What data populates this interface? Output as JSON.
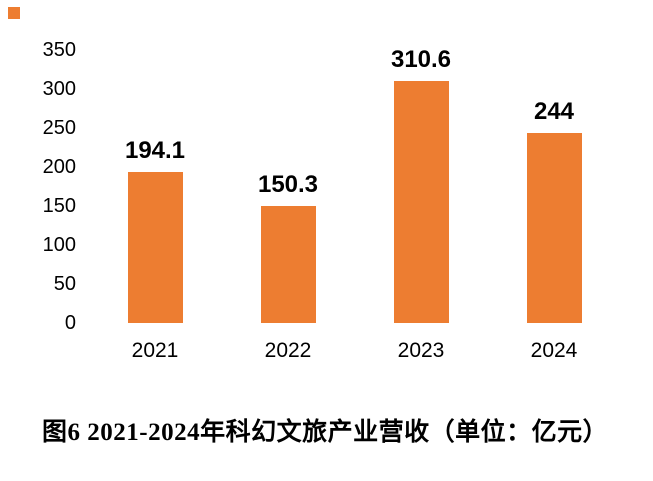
{
  "decoration": {
    "corner_square_color": "#ED7D31"
  },
  "chart_data": {
    "type": "bar",
    "title": "图6 2021-2024年科幻文旅产业营收（单位：亿元）",
    "categories": [
      "2021",
      "2022",
      "2023",
      "2024"
    ],
    "values": [
      194.1,
      150.3,
      310.6,
      244
    ],
    "value_labels": [
      "194.1",
      "150.3",
      "310.6",
      "244"
    ],
    "yticks": [
      350,
      300,
      250,
      200,
      150,
      100,
      50,
      0
    ],
    "ylim": [
      0,
      350
    ],
    "xlabel": "",
    "ylabel": "",
    "bar_color": "#ED7D31",
    "text_color": "#000000",
    "grid": false,
    "legend": false,
    "legend_position": "none"
  }
}
